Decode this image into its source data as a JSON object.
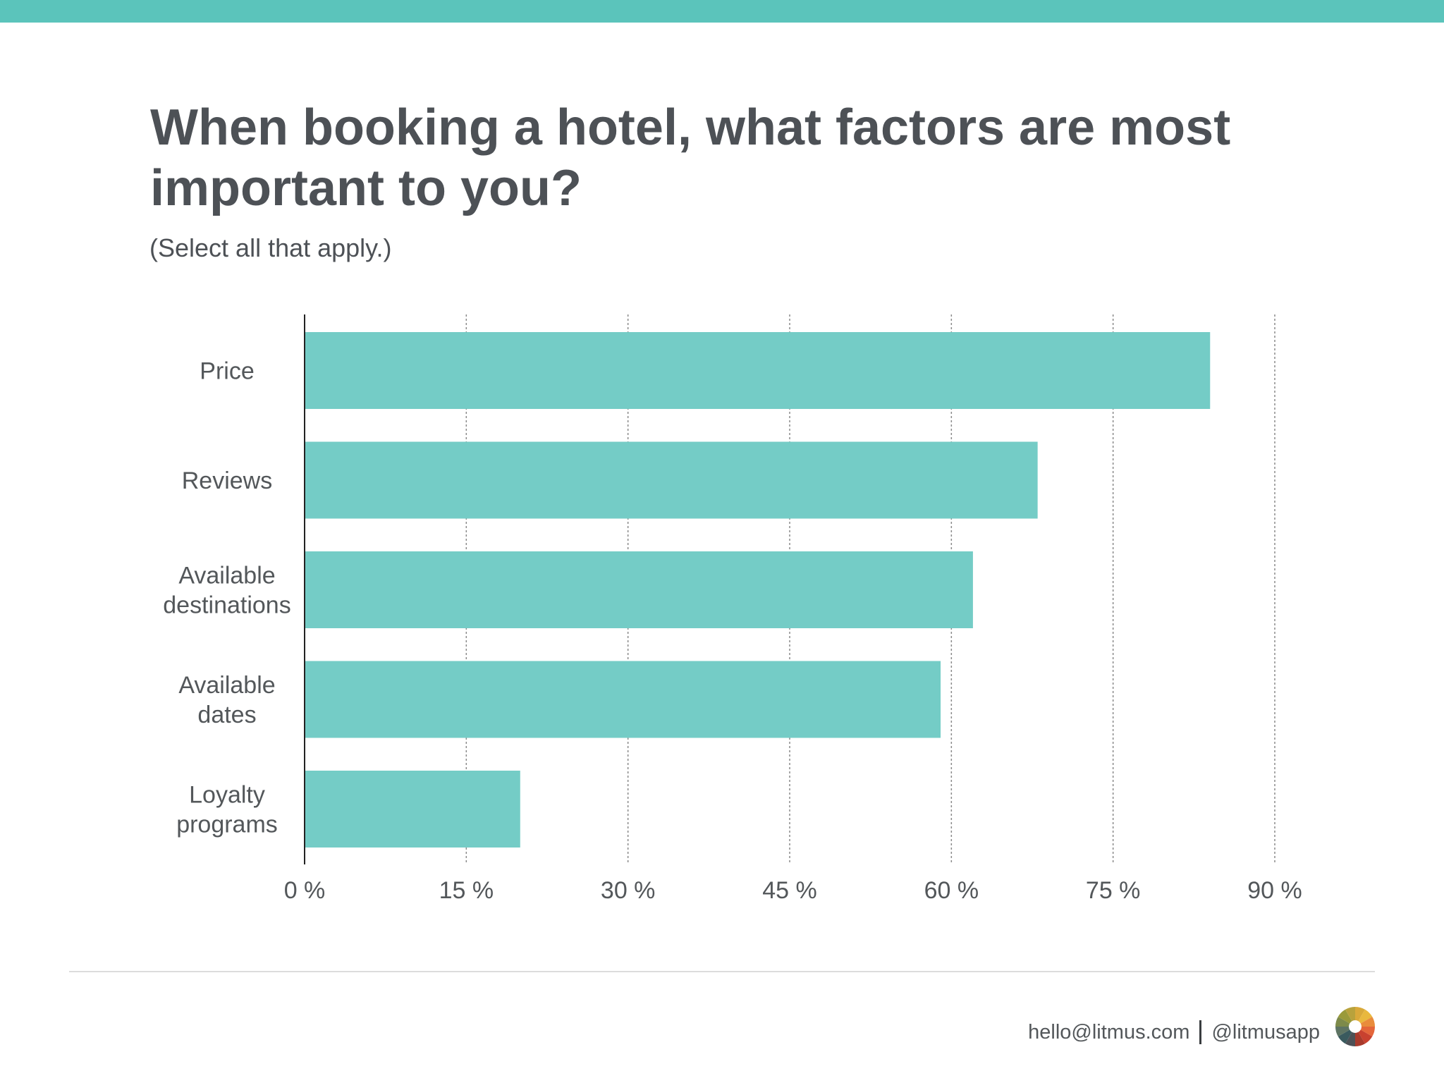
{
  "page": {
    "title": "When booking a hotel, what factors are most important to you?",
    "subtitle": "(Select all that apply.)",
    "footer": {
      "email": "hello@litmus.com",
      "handle": "@litmusapp"
    },
    "logo_icon": "litmus-color-wheel-icon",
    "colors": {
      "accent": "#5bc4bb",
      "bar": "#74ccc6",
      "text": "#53575a"
    }
  },
  "chart_data": {
    "type": "bar",
    "orientation": "horizontal",
    "title": "When booking a hotel, what factors are most important to you?",
    "subtitle": "(Select all that apply.)",
    "categories": [
      [
        "Price"
      ],
      [
        "Reviews"
      ],
      [
        "Available",
        "destinations"
      ],
      [
        "Available",
        "dates"
      ],
      [
        "Loyalty",
        "programs"
      ]
    ],
    "values": [
      84,
      68,
      62,
      59,
      20
    ],
    "xlim": [
      0,
      90
    ],
    "xticks": [
      0,
      15,
      30,
      45,
      60,
      75,
      90
    ],
    "xtick_labels": [
      "0 %",
      "15 %",
      "30 %",
      "45 %",
      "60 %",
      "75 %",
      "90 %"
    ],
    "xlabel": "",
    "ylabel": "",
    "grid": "vertical dashed",
    "legend": "none",
    "bar_color": "#74ccc6"
  }
}
